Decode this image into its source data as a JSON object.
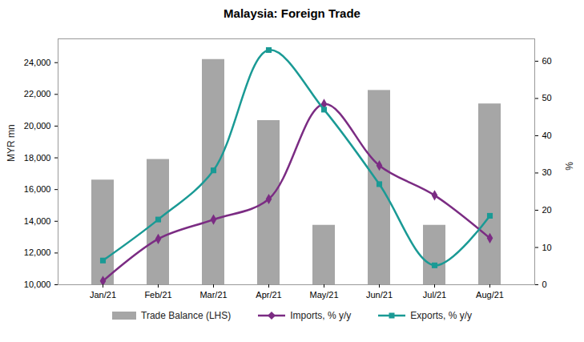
{
  "chart_data": {
    "type": "bar",
    "title": "Malaysia: Foreign Trade",
    "y_label": "MYR mn",
    "y2_label": "%",
    "categories": [
      "Jan/21",
      "Feb/21",
      "Mar/21",
      "Apr/21",
      "May/21",
      "Jun/21",
      "Jul/21",
      "Aug/21"
    ],
    "series": [
      {
        "name": "Trade Balance (LHS)",
        "type": "bar",
        "color": "#a6a6a6",
        "values": [
          16600,
          17900,
          24200,
          20350,
          13750,
          22250,
          13750,
          21400
        ]
      },
      {
        "name": "Imports, % y/y",
        "type": "line",
        "axis": "y2",
        "color": "#7b2c83",
        "marker": "diamond",
        "values": [
          1,
          12.3,
          17.5,
          23,
          48.5,
          32,
          24,
          12.5
        ]
      },
      {
        "name": "Exports, % y/y",
        "type": "line",
        "axis": "y2",
        "color": "#1a9a95",
        "marker": "square",
        "values": [
          6.5,
          17.5,
          30.7,
          63,
          47,
          27,
          5.2,
          18.5
        ]
      }
    ],
    "ylim": [
      10000,
      25500
    ],
    "yticks": [
      {
        "value": 10000,
        "label": "10,000"
      },
      {
        "value": 12000,
        "label": "12,000"
      },
      {
        "value": 14000,
        "label": "14,000"
      },
      {
        "value": 16000,
        "label": "16,000"
      },
      {
        "value": 18000,
        "label": "18,000"
      },
      {
        "value": 20000,
        "label": "20,000"
      },
      {
        "value": 22000,
        "label": "22,000"
      },
      {
        "value": 24000,
        "label": "24,000"
      }
    ],
    "y2lim": [
      0,
      66
    ],
    "y2ticks": [
      0,
      10,
      20,
      30,
      40,
      50,
      60
    ],
    "grid": false,
    "legend": "bottom"
  }
}
